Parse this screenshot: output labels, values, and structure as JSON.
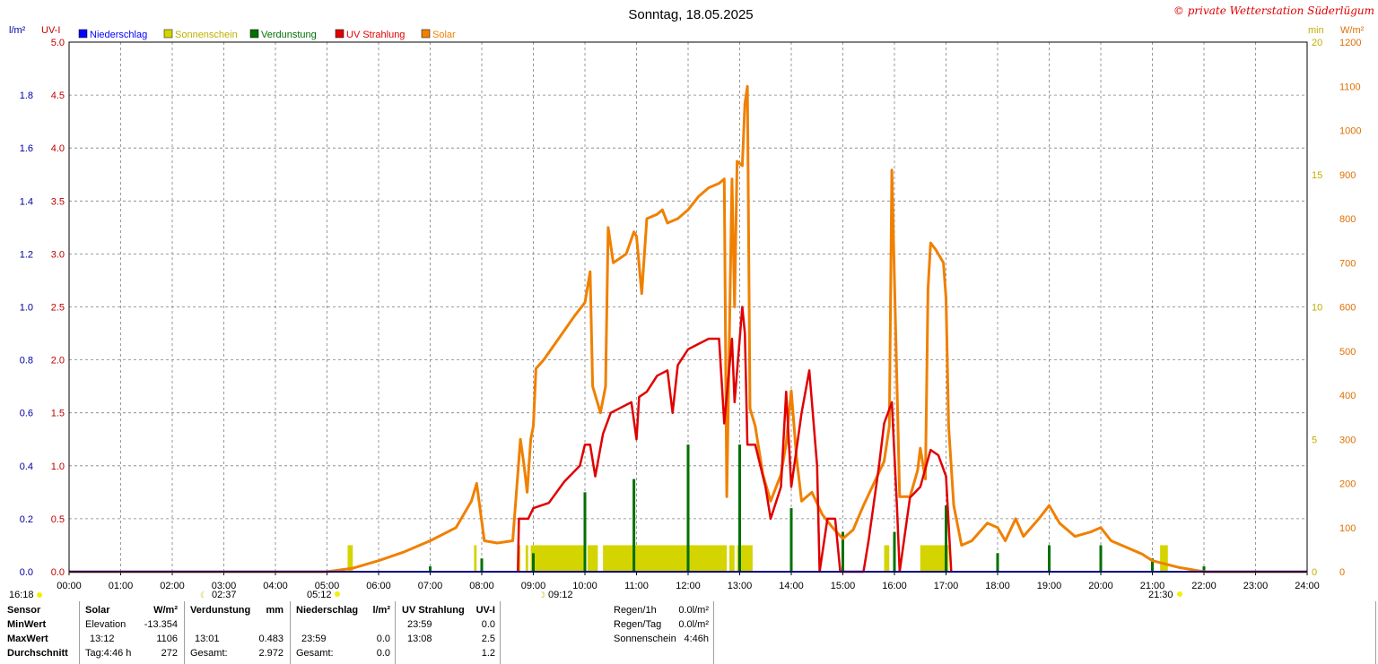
{
  "title": "Sonntag, 18.05.2025",
  "copyright": "© private Wetterstation Süderlügum",
  "colors": {
    "niederschlag": "#0000ff",
    "sonnenschein": "#d4d400",
    "verdunstung": "#007000",
    "uv": "#e00000",
    "solar": "#f08000",
    "grid": "#808080",
    "left_axis_1": "#0000a0",
    "left_axis_2": "#c00000",
    "right_axis_1": "#c0b000",
    "right_axis_2": "#e07000"
  },
  "legend": [
    {
      "label": "Niederschlag",
      "color": "#0000ff"
    },
    {
      "label": "Sonnenschein",
      "color": "#d4d400"
    },
    {
      "label": "Verdunstung",
      "color": "#007000"
    },
    {
      "label": "UV Strahlung",
      "color": "#e00000"
    },
    {
      "label": "Solar",
      "color": "#f08000"
    }
  ],
  "axis_units": {
    "left1": "l/m²",
    "left2": "UV-I",
    "right1": "min",
    "right2": "W/m²"
  },
  "sun_events": {
    "sunrise_left": "16:18",
    "moon_rise": "02:37",
    "sunrise": "05:12",
    "moon_set": "09:12",
    "sunset": "21:30"
  },
  "chart_data": {
    "type": "line",
    "x_range_hours": [
      0,
      24
    ],
    "x_ticks": [
      "00:00",
      "01:00",
      "02:00",
      "03:00",
      "04:00",
      "05:00",
      "06:00",
      "07:00",
      "08:00",
      "09:00",
      "10:00",
      "11:00",
      "12:00",
      "13:00",
      "14:00",
      "15:00",
      "16:00",
      "17:00",
      "18:00",
      "19:00",
      "20:00",
      "21:00",
      "22:00",
      "23:00",
      "24:00"
    ],
    "y_axes": {
      "niederschlag_lm2": {
        "range": [
          0,
          2.0
        ],
        "ticks": [
          "0.0",
          "0.2",
          "0.4",
          "0.6",
          "0.8",
          "1.0",
          "1.2",
          "1.4",
          "1.6",
          "1.8"
        ]
      },
      "uv_index": {
        "range": [
          0,
          5.0
        ],
        "ticks": [
          "0.0",
          "0.5",
          "1.0",
          "1.5",
          "2.0",
          "2.5",
          "3.0",
          "3.5",
          "4.0",
          "4.5",
          "5.0"
        ]
      },
      "sonnenschein_min": {
        "range": [
          0,
          20
        ],
        "ticks": [
          "0",
          "5",
          "10",
          "15",
          "20"
        ]
      },
      "solar_wm2": {
        "range": [
          0,
          1200
        ],
        "ticks": [
          "0",
          "100",
          "200",
          "300",
          "400",
          "500",
          "600",
          "700",
          "800",
          "900",
          "1000",
          "1100",
          "1200"
        ]
      }
    },
    "grid": true,
    "series": [
      {
        "name": "Solar",
        "unit": "W/m²",
        "points": [
          [
            0,
            0
          ],
          [
            5.0,
            0
          ],
          [
            5.5,
            8
          ],
          [
            6.0,
            25
          ],
          [
            6.5,
            45
          ],
          [
            7.0,
            70
          ],
          [
            7.5,
            100
          ],
          [
            7.8,
            160
          ],
          [
            7.9,
            200
          ],
          [
            8.05,
            70
          ],
          [
            8.3,
            65
          ],
          [
            8.6,
            70
          ],
          [
            8.75,
            300
          ],
          [
            8.82,
            240
          ],
          [
            8.88,
            180
          ],
          [
            8.95,
            300
          ],
          [
            9.0,
            330
          ],
          [
            9.05,
            460
          ],
          [
            9.2,
            480
          ],
          [
            9.5,
            530
          ],
          [
            9.8,
            580
          ],
          [
            10.0,
            610
          ],
          [
            10.1,
            680
          ],
          [
            10.15,
            420
          ],
          [
            10.3,
            360
          ],
          [
            10.4,
            420
          ],
          [
            10.45,
            780
          ],
          [
            10.55,
            700
          ],
          [
            10.8,
            720
          ],
          [
            10.95,
            770
          ],
          [
            11.0,
            760
          ],
          [
            11.1,
            630
          ],
          [
            11.2,
            800
          ],
          [
            11.4,
            810
          ],
          [
            11.5,
            820
          ],
          [
            11.6,
            790
          ],
          [
            11.8,
            800
          ],
          [
            12.0,
            820
          ],
          [
            12.2,
            850
          ],
          [
            12.4,
            870
          ],
          [
            12.6,
            880
          ],
          [
            12.7,
            890
          ],
          [
            12.75,
            170
          ],
          [
            12.85,
            890
          ],
          [
            12.9,
            600
          ],
          [
            12.95,
            930
          ],
          [
            13.05,
            920
          ],
          [
            13.1,
            1060
          ],
          [
            13.15,
            1100
          ],
          [
            13.2,
            370
          ],
          [
            13.3,
            330
          ],
          [
            13.45,
            220
          ],
          [
            13.6,
            160
          ],
          [
            13.8,
            220
          ],
          [
            13.9,
            290
          ],
          [
            14.0,
            410
          ],
          [
            14.1,
            260
          ],
          [
            14.2,
            160
          ],
          [
            14.4,
            180
          ],
          [
            14.6,
            130
          ],
          [
            14.8,
            100
          ],
          [
            15.0,
            75
          ],
          [
            15.2,
            95
          ],
          [
            15.4,
            150
          ],
          [
            15.6,
            200
          ],
          [
            15.8,
            250
          ],
          [
            15.9,
            330
          ],
          [
            15.95,
            910
          ],
          [
            16.1,
            170
          ],
          [
            16.3,
            170
          ],
          [
            16.45,
            230
          ],
          [
            16.5,
            280
          ],
          [
            16.6,
            210
          ],
          [
            16.65,
            640
          ],
          [
            16.7,
            745
          ],
          [
            16.8,
            730
          ],
          [
            16.95,
            700
          ],
          [
            17.0,
            620
          ],
          [
            17.05,
            330
          ],
          [
            17.15,
            150
          ],
          [
            17.3,
            60
          ],
          [
            17.5,
            70
          ],
          [
            17.8,
            110
          ],
          [
            18.0,
            100
          ],
          [
            18.15,
            70
          ],
          [
            18.35,
            120
          ],
          [
            18.5,
            80
          ],
          [
            18.8,
            120
          ],
          [
            19.0,
            150
          ],
          [
            19.2,
            110
          ],
          [
            19.5,
            80
          ],
          [
            19.8,
            90
          ],
          [
            20.0,
            100
          ],
          [
            20.2,
            70
          ],
          [
            20.5,
            55
          ],
          [
            20.8,
            40
          ],
          [
            21.0,
            25
          ],
          [
            21.5,
            10
          ],
          [
            22.0,
            0
          ],
          [
            24,
            0
          ]
        ]
      },
      {
        "name": "UV Strahlung",
        "unit": "UV-I",
        "points": [
          [
            8.7,
            0
          ],
          [
            8.72,
            0.5
          ],
          [
            8.9,
            0.5
          ],
          [
            9.0,
            0.6
          ],
          [
            9.3,
            0.65
          ],
          [
            9.6,
            0.85
          ],
          [
            9.9,
            1.0
          ],
          [
            10.0,
            1.2
          ],
          [
            10.1,
            1.2
          ],
          [
            10.2,
            0.9
          ],
          [
            10.35,
            1.3
          ],
          [
            10.5,
            1.5
          ],
          [
            10.7,
            1.55
          ],
          [
            10.9,
            1.6
          ],
          [
            11.0,
            1.25
          ],
          [
            11.05,
            1.65
          ],
          [
            11.2,
            1.7
          ],
          [
            11.4,
            1.85
          ],
          [
            11.6,
            1.9
          ],
          [
            11.7,
            1.5
          ],
          [
            11.8,
            1.95
          ],
          [
            12.0,
            2.1
          ],
          [
            12.2,
            2.15
          ],
          [
            12.4,
            2.2
          ],
          [
            12.6,
            2.2
          ],
          [
            12.7,
            1.4
          ],
          [
            12.85,
            2.2
          ],
          [
            12.9,
            1.6
          ],
          [
            13.05,
            2.5
          ],
          [
            13.1,
            2.25
          ],
          [
            13.15,
            1.2
          ],
          [
            13.3,
            1.2
          ],
          [
            13.5,
            0.8
          ],
          [
            13.6,
            0.5
          ],
          [
            13.8,
            0.8
          ],
          [
            13.9,
            1.7
          ],
          [
            14.0,
            0.8
          ],
          [
            14.2,
            1.5
          ],
          [
            14.35,
            1.9
          ],
          [
            14.5,
            1.0
          ],
          [
            14.55,
            0.0
          ],
          [
            14.7,
            0.5
          ],
          [
            14.85,
            0.5
          ],
          [
            14.95,
            0.0
          ],
          [
            15.4,
            0.0
          ],
          [
            15.5,
            0.3
          ],
          [
            15.7,
            1.0
          ],
          [
            15.8,
            1.4
          ],
          [
            15.95,
            1.6
          ],
          [
            16.05,
            0.6
          ],
          [
            16.1,
            0.0
          ],
          [
            16.3,
            0.7
          ],
          [
            16.5,
            0.8
          ],
          [
            16.7,
            1.15
          ],
          [
            16.85,
            1.1
          ],
          [
            17.0,
            0.9
          ],
          [
            17.1,
            0.0
          ]
        ]
      },
      {
        "name": "Sonnenschein",
        "unit": "min",
        "intervals": [
          [
            5.4,
            5.5
          ],
          [
            7.85,
            7.9
          ],
          [
            8.7,
            8.75
          ],
          [
            8.85,
            8.9
          ],
          [
            8.95,
            10.0
          ],
          [
            10.05,
            10.25
          ],
          [
            10.35,
            12.75
          ],
          [
            12.8,
            12.9
          ],
          [
            12.95,
            13.25
          ],
          [
            15.8,
            15.9
          ],
          [
            16.5,
            17.05
          ],
          [
            21.15,
            21.3
          ]
        ],
        "value": 1
      },
      {
        "name": "Verdunstung",
        "unit": "mm",
        "bars": [
          [
            7.0,
            0.02
          ],
          [
            8.0,
            0.05
          ],
          [
            9.0,
            0.07
          ],
          [
            10.0,
            0.3
          ],
          [
            10.95,
            0.35
          ],
          [
            12.0,
            0.48
          ],
          [
            13.0,
            0.48
          ],
          [
            14.0,
            0.24
          ],
          [
            15.0,
            0.15
          ],
          [
            16.0,
            0.15
          ],
          [
            17.0,
            0.25
          ],
          [
            18.0,
            0.07
          ],
          [
            19.0,
            0.1
          ],
          [
            20.0,
            0.1
          ],
          [
            21.0,
            0.05
          ],
          [
            22.0,
            0.02
          ]
        ]
      },
      {
        "name": "Niederschlag",
        "unit": "l/m²",
        "points": [
          [
            0,
            0
          ],
          [
            24,
            0
          ]
        ]
      }
    ]
  },
  "table": {
    "sensor": {
      "header": "Sensor",
      "rows": [
        "MinWert",
        "MaxWert",
        "Durchschnitt"
      ]
    },
    "solar": {
      "header": "Solar",
      "unit": "W/m²",
      "c1": [
        "Elevation",
        "13:12",
        "Tag:4:46 h"
      ],
      "c2": [
        "-13.354",
        "1106",
        "272"
      ]
    },
    "verdunstung": {
      "header": "Verdunstung",
      "unit": "mm",
      "c1": [
        "",
        "13:01",
        "Gesamt:"
      ],
      "c2": [
        "",
        "0.483",
        "2.972"
      ]
    },
    "niederschlag": {
      "header": "Niederschlag",
      "unit": "l/m²",
      "c1": [
        "",
        "23:59",
        "Gesamt:"
      ],
      "c2": [
        "",
        "0.0",
        "0.0"
      ]
    },
    "uv": {
      "header": "UV Strahlung",
      "unit": "UV-I",
      "c1": [
        "23:59",
        "13:08",
        ""
      ],
      "c2": [
        "0.0",
        "2.5",
        "1.2"
      ]
    },
    "rain_summary": {
      "labels": [
        "Regen/1h",
        "Regen/Tag",
        "Sonnenschein"
      ],
      "values": [
        "0.0l/m²",
        "0.0l/m²",
        "4:46h"
      ]
    }
  }
}
